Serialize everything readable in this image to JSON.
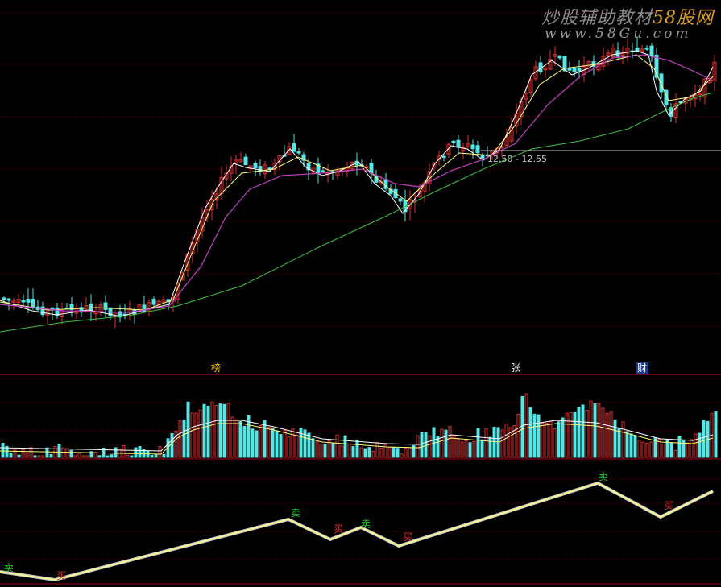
{
  "watermark": {
    "title_main": "炒股辅助教材",
    "title_brand": "58股网",
    "url": "www.58Gu.com"
  },
  "price_panel": {
    "price_range_label": "12.50 - 12.55"
  },
  "event_tags": [
    "榜",
    "张",
    "财"
  ],
  "signals": [
    {
      "type": "sell",
      "label": "卖"
    },
    {
      "type": "buy",
      "label": "买"
    },
    {
      "type": "sell",
      "label": "卖"
    },
    {
      "type": "buy",
      "label": "买"
    },
    {
      "type": "sell",
      "label": "卖"
    },
    {
      "type": "buy",
      "label": "买"
    },
    {
      "type": "sell",
      "label": "卖"
    },
    {
      "type": "buy",
      "label": "买"
    }
  ],
  "colors": {
    "up": "#e03030",
    "down": "#55e6e6",
    "ma_white": "#ffffff",
    "ma_yellow": "#ffff80",
    "ma_magenta": "#c040c0",
    "ma_green": "#40c040",
    "panel_border": "#a00020",
    "grid": "#5a0010"
  }
}
